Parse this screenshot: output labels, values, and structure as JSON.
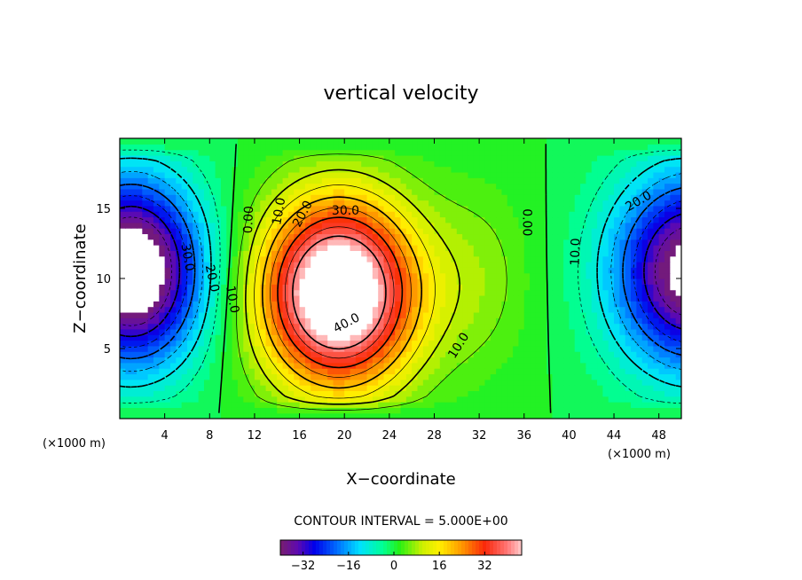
{
  "chart_data": {
    "type": "heatmap",
    "title": "vertical velocity",
    "xlabel": "X−coordinate",
    "ylabel": "Z−coordinate",
    "x_unit_left": "(×1000 m)",
    "x_unit_right": "(×1000 m)",
    "xlim": [
      0,
      50
    ],
    "ylim": [
      0,
      20
    ],
    "x_ticks": [
      4,
      8,
      12,
      16,
      20,
      24,
      28,
      32,
      36,
      40,
      44,
      48
    ],
    "x_tick_labels": [
      "4",
      "8",
      "12",
      "16",
      "20",
      "24",
      "28",
      "32",
      "36",
      "40",
      "44",
      "48"
    ],
    "y_ticks": [
      5,
      10,
      15
    ],
    "y_tick_labels": [
      "5",
      "10",
      "15"
    ],
    "contour_interval_text": "CONTOUR INTERVAL = 5.000E+00",
    "contour_interval": 5,
    "contour_labels": [
      {
        "text": "30.0",
        "x": 6.0,
        "z": 11.5,
        "angle": 80
      },
      {
        "text": "20.0",
        "x": 8.2,
        "z": 10.0,
        "angle": 78
      },
      {
        "text": "10.0",
        "x": 10.0,
        "z": 8.5,
        "angle": 80
      },
      {
        "text": "0.00",
        "x": 11.5,
        "z": 14.2,
        "angle": -88
      },
      {
        "text": "10.0",
        "x": 14.2,
        "z": 14.8,
        "angle": -80
      },
      {
        "text": "20.0",
        "x": 16.3,
        "z": 14.6,
        "angle": -62
      },
      {
        "text": "30.0",
        "x": 20.1,
        "z": 14.8,
        "angle": 0
      },
      {
        "text": "40.0",
        "x": 20.2,
        "z": 6.8,
        "angle": -28
      },
      {
        "text": "10.0",
        "x": 30.2,
        "z": 5.2,
        "angle": -58
      },
      {
        "text": "0.00",
        "x": 36.2,
        "z": 14.0,
        "angle": 90
      },
      {
        "text": "10.0",
        "x": 40.6,
        "z": 11.9,
        "angle": -88
      },
      {
        "text": "20.0",
        "x": 46.2,
        "z": 15.5,
        "angle": -30
      }
    ],
    "colorbar": {
      "range": [
        -40,
        45
      ],
      "ticks": [
        -32,
        -16,
        0,
        16,
        32
      ],
      "tick_labels": [
        "−32",
        "−16",
        "0",
        "16",
        "32"
      ]
    }
  }
}
